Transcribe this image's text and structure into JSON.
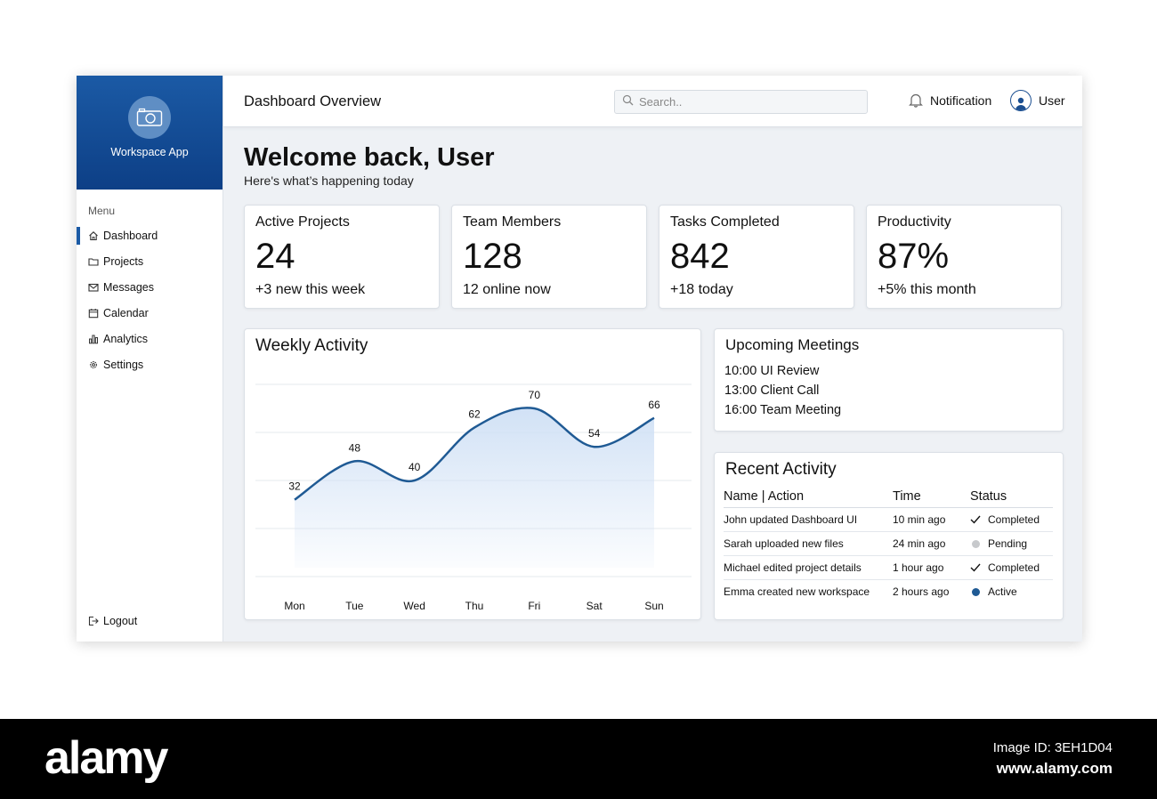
{
  "sidebar": {
    "brand_name": "Workspace App",
    "brand_icon": "camera-icon",
    "menu_title": "Menu",
    "items": [
      {
        "label": "Dashboard",
        "icon": "home-icon",
        "active": true
      },
      {
        "label": "Projects",
        "icon": "folder-icon",
        "active": false
      },
      {
        "label": "Messages",
        "icon": "mail-icon",
        "active": false
      },
      {
        "label": "Calendar",
        "icon": "calendar-icon",
        "active": false
      },
      {
        "label": "Analytics",
        "icon": "bar-chart-icon",
        "active": false
      },
      {
        "label": "Settings",
        "icon": "gear-icon",
        "active": false
      }
    ],
    "logout_label": "Logout"
  },
  "header": {
    "title": "Dashboard Overview",
    "search_placeholder": "Search..",
    "notification_label": "Notification",
    "user_label": "User"
  },
  "main": {
    "welcome": "Welcome back, User",
    "subtitle": "Here's what’s happening today",
    "stats": [
      {
        "label": "Active Projects",
        "value": "24",
        "sub": "+3 new this week"
      },
      {
        "label": "Team Members",
        "value": "128",
        "sub": "12 online now"
      },
      {
        "label": "Tasks Completed",
        "value": "842",
        "sub": "+18 today"
      },
      {
        "label": "Productivity",
        "value": "87%",
        "sub": "+5% this month"
      }
    ]
  },
  "chart_data": {
    "type": "area",
    "title": "Weekly Activity",
    "categories": [
      "Mon",
      "Tue",
      "Wed",
      "Thu",
      "Fri",
      "Sat",
      "Sun"
    ],
    "values": [
      32,
      48,
      40,
      62,
      70,
      54,
      66
    ],
    "xlabel": "",
    "ylabel": "",
    "ylim": [
      0,
      80
    ],
    "grid": true,
    "line_color": "#1f5a94",
    "fill_color": "#cfe0f5"
  },
  "meetings": {
    "title": "Upcoming Meetings",
    "items": [
      "10:00 UI Review",
      "13:00 Client Call",
      "16:00 Team Meeting"
    ]
  },
  "activity": {
    "title": "Recent Activity",
    "columns": [
      "Name | Action",
      "Time",
      "Status"
    ],
    "rows": [
      {
        "action": "John updated Dashboard UI",
        "time": "10 min ago",
        "status": "Completed",
        "status_icon": "check-icon"
      },
      {
        "action": "Sarah uploaded new files",
        "time": "24 min ago",
        "status": "Pending",
        "status_icon": "dot-icon",
        "dot_color": "#c7c9cc"
      },
      {
        "action": "Michael edited project details",
        "time": "1 hour ago",
        "status": "Completed",
        "status_icon": "check-icon"
      },
      {
        "action": "Emma created new workspace",
        "time": "2 hours ago",
        "status": "Active",
        "status_icon": "dot-icon",
        "dot_color": "#1f5a94"
      }
    ]
  },
  "footer": {
    "logo": "alamy",
    "image_id": "Image ID: 3EH1D04",
    "url": "www.alamy.com"
  }
}
